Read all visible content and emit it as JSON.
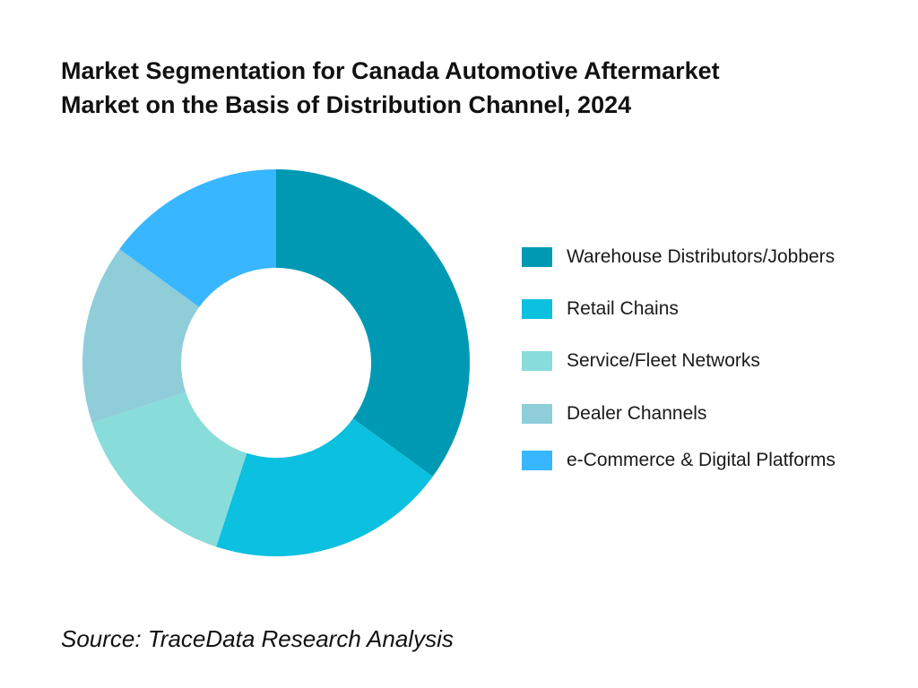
{
  "chart_data": {
    "type": "pie",
    "variant": "donut",
    "title_lines": [
      "Market Segmentation for Canada Automotive Aftermarket",
      "Market on the Basis of Distribution Channel, 2024"
    ],
    "categories": [
      "Warehouse Distributors/Jobbers",
      "Retail Chains",
      "Service/Fleet Networks",
      "Dealer Channels",
      "e-Commerce & Digital Platforms"
    ],
    "values": [
      35,
      20,
      15,
      15,
      15
    ],
    "colors": [
      "#0099b4",
      "#0cc0df",
      "#88dcd9",
      "#8fcdd9",
      "#38b6ff"
    ],
    "legend_position": "right"
  },
  "footer": {
    "source": "Source: TraceData Research Analysis"
  }
}
